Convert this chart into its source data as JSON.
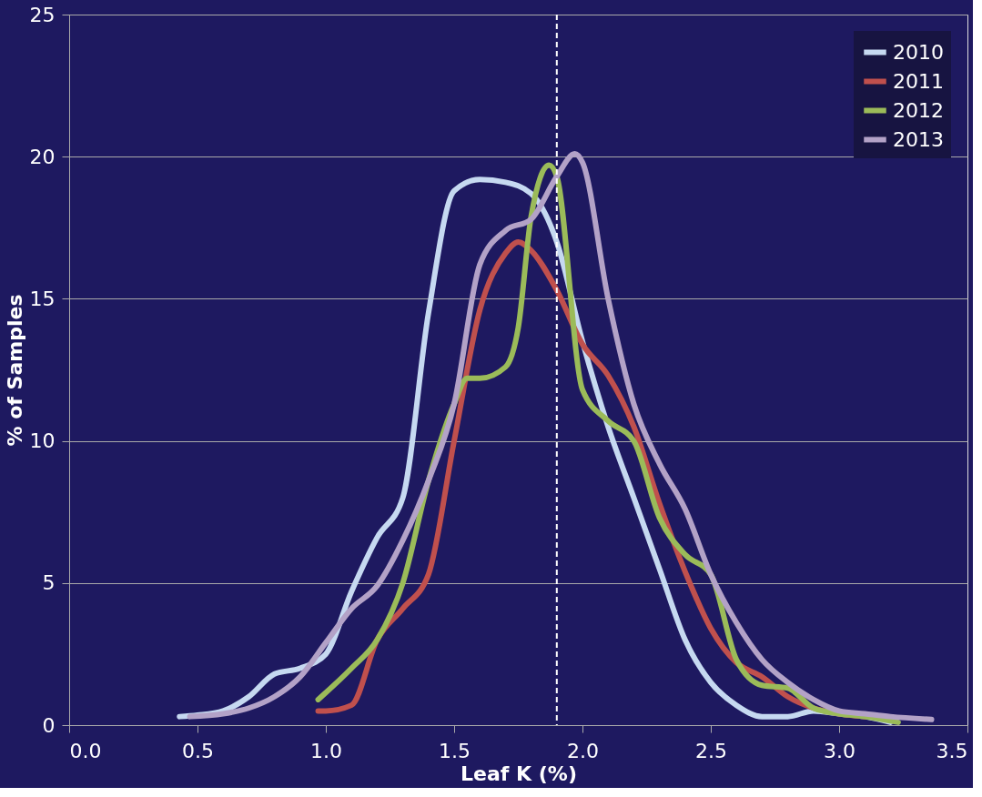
{
  "chart_data": {
    "type": "line",
    "xlabel": "Leaf K (%)",
    "ylabel": "% of Samples",
    "xlim": [
      0,
      3.5
    ],
    "ylim": [
      0,
      25
    ],
    "xticks": [
      {
        "value": 0,
        "label": "0.0"
      },
      {
        "value": 0.5,
        "label": "0.5"
      },
      {
        "value": 1,
        "label": "1.0"
      },
      {
        "value": 1.5,
        "label": "1.5"
      },
      {
        "value": 2,
        "label": "2.0"
      },
      {
        "value": 2.5,
        "label": "2.5"
      },
      {
        "value": 3,
        "label": "3.0"
      },
      {
        "value": 3.5,
        "label": "3.5"
      }
    ],
    "yticks": [
      0,
      5,
      10,
      15,
      20,
      25
    ],
    "grid": "y",
    "legend": "top right",
    "line_style": "solid",
    "marker": "none",
    "ref_lines": [
      {
        "axis": "x",
        "value": 1.9,
        "label": null,
        "color": "#ffffff",
        "line_style": "dashed"
      }
    ],
    "series": [
      {
        "name": "2010",
        "color": "#c6d9f1",
        "x": [
          0.43,
          0.5,
          0.6,
          0.7,
          0.8,
          0.9,
          1.0,
          1.1,
          1.2,
          1.3,
          1.4,
          1.5,
          1.6,
          1.7,
          1.8,
          1.9,
          2.0,
          2.1,
          2.2,
          2.3,
          2.4,
          2.5,
          2.6,
          2.7,
          2.8,
          2.9,
          3.0,
          3.1,
          3.2
        ],
        "values": [
          0.3,
          0.35,
          0.5,
          1.0,
          1.8,
          2.0,
          2.5,
          4.7,
          6.6,
          8.0,
          14.5,
          18.8,
          19.2,
          19.1,
          18.7,
          17.0,
          13.5,
          10.5,
          8.0,
          5.5,
          3.0,
          1.5,
          0.7,
          0.3,
          0.3,
          0.5,
          0.4,
          0.3,
          0.1
        ]
      },
      {
        "name": "2011",
        "color": "#c0504d",
        "x": [
          0.97,
          1.0,
          1.1,
          1.2,
          1.3,
          1.4,
          1.5,
          1.6,
          1.7,
          1.75,
          1.8,
          1.9,
          2.0,
          2.1,
          2.2,
          2.3,
          2.4,
          2.5,
          2.6,
          2.7,
          2.8,
          2.9,
          3.0,
          3.1
        ],
        "values": [
          0.5,
          0.5,
          0.7,
          3.0,
          4.1,
          5.3,
          10.0,
          14.6,
          16.6,
          17.0,
          16.7,
          15.3,
          13.4,
          12.3,
          10.5,
          7.8,
          5.4,
          3.4,
          2.2,
          1.7,
          1.0,
          0.6,
          0.4,
          0.3
        ]
      },
      {
        "name": "2012",
        "color": "#9bbb59",
        "x": [
          0.97,
          1.1,
          1.2,
          1.3,
          1.4,
          1.5,
          1.55,
          1.6,
          1.7,
          1.75,
          1.8,
          1.87,
          1.9,
          2.0,
          2.1,
          2.2,
          2.3,
          2.4,
          2.5,
          2.6,
          2.7,
          2.8,
          2.9,
          3.0,
          3.1,
          3.23
        ],
        "values": [
          0.9,
          2.0,
          3.0,
          5.0,
          8.6,
          11.3,
          12.2,
          12.2,
          12.6,
          14.0,
          17.9,
          19.7,
          19.3,
          11.8,
          10.7,
          10.0,
          7.3,
          6.0,
          5.3,
          2.3,
          1.4,
          1.3,
          0.6,
          0.4,
          0.3,
          0.1
        ]
      },
      {
        "name": "2013",
        "color": "#b3a2c7",
        "x": [
          0.47,
          0.6,
          0.7,
          0.8,
          0.9,
          1.0,
          1.1,
          1.2,
          1.3,
          1.4,
          1.5,
          1.6,
          1.7,
          1.8,
          1.9,
          1.97,
          2.0,
          2.1,
          2.2,
          2.3,
          2.4,
          2.5,
          2.6,
          2.7,
          2.8,
          2.9,
          3.0,
          3.1,
          3.2,
          3.36
        ],
        "values": [
          0.3,
          0.4,
          0.6,
          1.0,
          1.7,
          2.9,
          4.1,
          4.9,
          6.5,
          8.6,
          11.3,
          16.2,
          17.4,
          17.8,
          19.3,
          20.1,
          19.8,
          15.0,
          11.3,
          9.2,
          7.6,
          5.3,
          3.6,
          2.3,
          1.5,
          0.9,
          0.5,
          0.4,
          0.3,
          0.2
        ]
      }
    ]
  }
}
